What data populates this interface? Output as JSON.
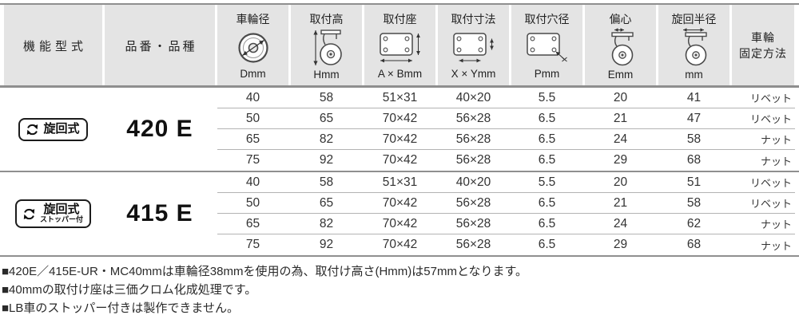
{
  "colors": {
    "header_bg": "#e4e4e4",
    "line_strong": "#8f8f8f",
    "line_row": "#b3b3b3",
    "badge_border": "#1c1c1c",
    "text_body": "#333333"
  },
  "header": {
    "function_label": "機能型式",
    "part_label": "品番・品種",
    "cols": [
      {
        "label": "車輪径",
        "unit": "Dmm",
        "icon": "wheel-diameter-icon"
      },
      {
        "label": "取付高",
        "unit": "Hmm",
        "icon": "mount-height-icon"
      },
      {
        "label": "取付座",
        "unit": "A × Bmm",
        "icon": "mount-seat-icon"
      },
      {
        "label": "取付寸法",
        "unit": "X × Ymm",
        "icon": "mount-dimensions-icon"
      },
      {
        "label": "取付穴径",
        "unit": "Pmm",
        "icon": "mount-hole-icon"
      },
      {
        "label": "偏心",
        "unit": "Emm",
        "icon": "eccentricity-icon"
      },
      {
        "label": "旋回半径",
        "unit": "mm",
        "icon": "swivel-radius-icon"
      }
    ],
    "fixing_line1": "車輪",
    "fixing_line2": "固定方法"
  },
  "groups": [
    {
      "badge": {
        "label": "旋回式",
        "sublabel": "",
        "icon": "swivel-arrows-icon"
      },
      "part_number": "420 E",
      "rows": [
        [
          "40",
          "58",
          "51×31",
          "40×20",
          "5.5",
          "20",
          "41",
          "リベット"
        ],
        [
          "50",
          "65",
          "70×42",
          "56×28",
          "6.5",
          "21",
          "47",
          "リベット"
        ],
        [
          "65",
          "82",
          "70×42",
          "56×28",
          "6.5",
          "24",
          "58",
          "ナット"
        ],
        [
          "75",
          "92",
          "70×42",
          "56×28",
          "6.5",
          "29",
          "68",
          "ナット"
        ]
      ]
    },
    {
      "badge": {
        "label": "旋回式",
        "sublabel": "ストッパー付",
        "icon": "swivel-arrows-icon"
      },
      "part_number": "415 E",
      "rows": [
        [
          "40",
          "58",
          "51×31",
          "40×20",
          "5.5",
          "20",
          "51",
          "リベット"
        ],
        [
          "50",
          "65",
          "70×42",
          "56×28",
          "6.5",
          "21",
          "58",
          "リベット"
        ],
        [
          "65",
          "82",
          "70×42",
          "56×28",
          "6.5",
          "24",
          "62",
          "ナット"
        ],
        [
          "75",
          "92",
          "70×42",
          "56×28",
          "6.5",
          "29",
          "68",
          "ナット"
        ]
      ]
    }
  ],
  "notes": [
    "■420E／415E-UR・MC40mmは車輪径38mmを使用の為、取付け高さ(Hmm)は57mmとなります。",
    "■40mmの取付け座は三価クロム化成処理です。",
    "■LB車のストッパー付きは製作できません。"
  ]
}
